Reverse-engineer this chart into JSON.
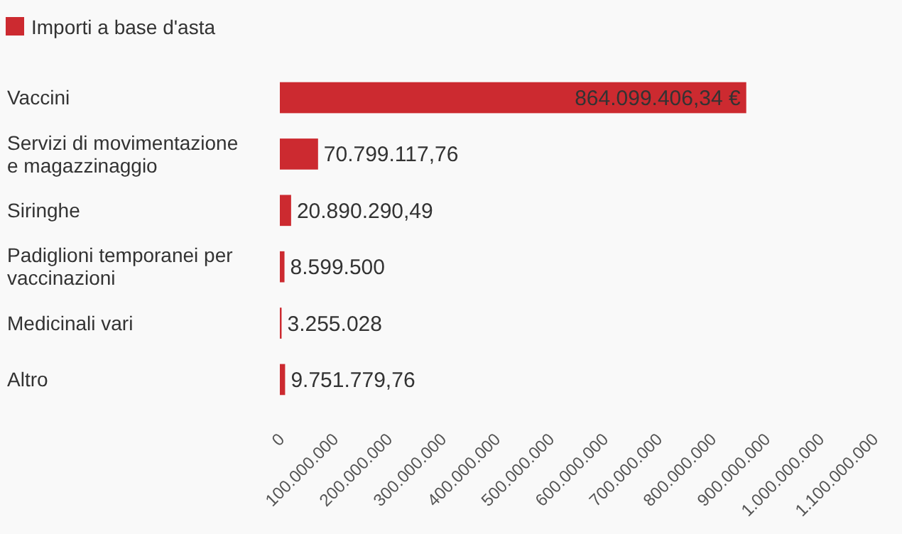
{
  "chart_data": {
    "type": "bar",
    "orientation": "horizontal",
    "categories": [
      "Vaccini",
      "Servizi di movimentazione e magazzinaggio",
      "Siringhe",
      "Padiglioni temporanei per vaccinazioni",
      "Medicinali vari",
      "Altro"
    ],
    "series": [
      {
        "name": "Importi a base d'asta",
        "color": "#cc2a30",
        "values": [
          864099406.34,
          70799117.76,
          20890290.49,
          8599500,
          3255028,
          9751779.76
        ],
        "value_labels": [
          "864.099.406,34 €",
          "70.799.117,76",
          "20.890.290,49",
          "8.599.500",
          "3.255.028",
          "9.751.779,76"
        ]
      }
    ],
    "xlim": [
      0,
      1100000000
    ],
    "xticks": [
      0,
      {
        "value": 100000000,
        "label": "100.000.000"
      },
      {
        "value": 200000000,
        "label": "200.000.000"
      },
      {
        "value": 300000000,
        "label": "300.000.000"
      },
      {
        "value": 400000000,
        "label": "400.000.000"
      },
      {
        "value": 500000000,
        "label": "500.000.000"
      },
      {
        "value": 600000000,
        "label": "600.000.000"
      },
      {
        "value": 700000000,
        "label": "700.000.000"
      },
      {
        "value": 800000000,
        "label": "800.000.000"
      },
      {
        "value": 900000000,
        "label": "900.000.000"
      },
      {
        "value": 1000000000,
        "label": "1.000.000.000"
      },
      {
        "value": 1100000000,
        "label": "1.100.000.000"
      }
    ],
    "legend": "top left",
    "grid": false
  }
}
